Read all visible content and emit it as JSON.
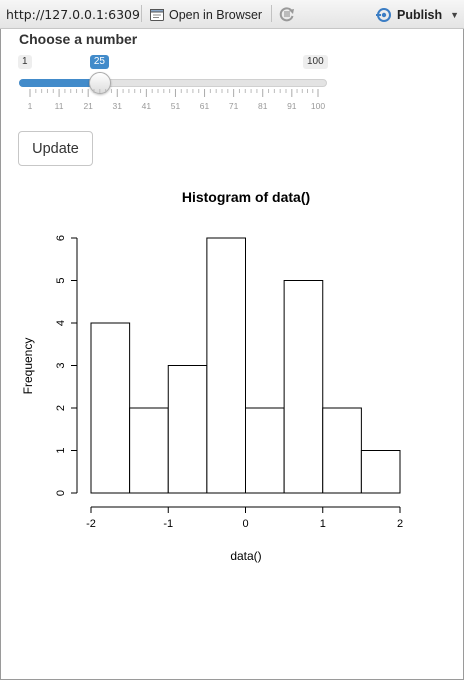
{
  "toolbar": {
    "url": "http://127.0.0.1:6309",
    "open_in_browser_label": "Open in Browser",
    "publish_label": "Publish"
  },
  "slider": {
    "label": "Choose a number",
    "min": 1,
    "max": 100,
    "value": 25,
    "min_label": "1",
    "max_label": "100",
    "value_label": "25",
    "tick_labels": [
      "1",
      "11",
      "21",
      "31",
      "41",
      "51",
      "61",
      "71",
      "81",
      "91",
      "100"
    ],
    "accent_color": "#428bca"
  },
  "update_button": {
    "label": "Update"
  },
  "chart_data": {
    "type": "bar",
    "title": "Histogram of data()",
    "xlabel": "data()",
    "ylabel": "Frequency",
    "bins": [
      {
        "from": -2.0,
        "to": -1.5,
        "count": 4
      },
      {
        "from": -1.5,
        "to": -1.0,
        "count": 2
      },
      {
        "from": -1.0,
        "to": -0.5,
        "count": 3
      },
      {
        "from": -0.5,
        "to": 0.0,
        "count": 6
      },
      {
        "from": 0.0,
        "to": 0.5,
        "count": 2
      },
      {
        "from": 0.5,
        "to": 1.0,
        "count": 5
      },
      {
        "from": 1.0,
        "to": 1.5,
        "count": 2
      },
      {
        "from": 1.5,
        "to": 2.0,
        "count": 1
      }
    ],
    "x_ticks": [
      -2,
      -1,
      0,
      1,
      2
    ],
    "x_tick_labels": [
      "-2",
      "-1",
      "0",
      "1",
      "2"
    ],
    "y_ticks": [
      0,
      1,
      2,
      3,
      4,
      5,
      6
    ],
    "y_tick_labels": [
      "0",
      "1",
      "2",
      "3",
      "4",
      "5",
      "6"
    ],
    "xlim": [
      -2,
      2
    ],
    "ylim": [
      0,
      6
    ],
    "grid": false
  }
}
